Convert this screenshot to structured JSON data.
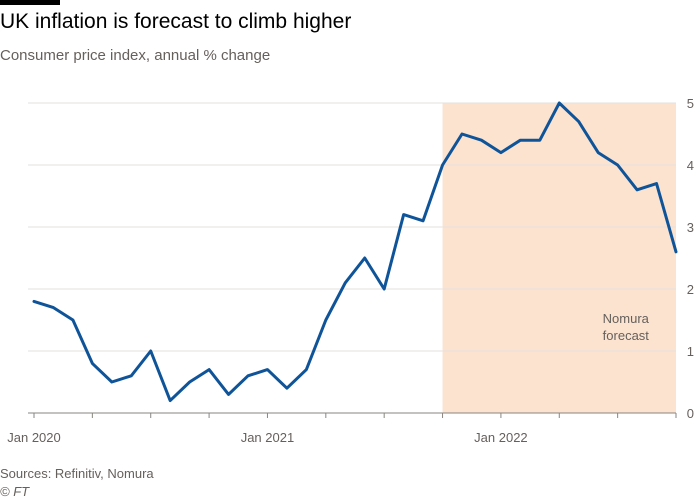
{
  "header": {
    "title": "UK inflation is forecast to climb higher",
    "subtitle": "Consumer price index, annual % change"
  },
  "footer": {
    "source": "Sources: Refinitiv, Nomura",
    "credit": "© FT"
  },
  "colors": {
    "line": "#0f5499",
    "forecast_shade": "#fbe3d0",
    "grid": "#e6e1dc",
    "axis": "#66605c"
  },
  "chart_data": {
    "type": "line",
    "title": "UK inflation is forecast to climb higher",
    "subtitle": "Consumer price index, annual % change",
    "xlabel": "",
    "ylabel": "",
    "ylim": [
      0,
      5
    ],
    "xlim_months": [
      0,
      33
    ],
    "yticks": [
      0,
      1,
      2,
      3,
      4,
      5
    ],
    "y_axis_position": "right",
    "grid": true,
    "x_ticks": [
      {
        "month": 0,
        "label": "Jan 2020"
      },
      {
        "month": 12,
        "label": "Jan 2021"
      },
      {
        "month": 24,
        "label": "Jan 2022"
      }
    ],
    "minor_tick_months": [
      0,
      3,
      6,
      9,
      12,
      15,
      18,
      21,
      24,
      27,
      30,
      33
    ],
    "series": [
      {
        "name": "CPI annual % change",
        "months": [
          0,
          1,
          2,
          3,
          4,
          5,
          6,
          7,
          8,
          9,
          10,
          11,
          12,
          13,
          14,
          15,
          16,
          17,
          18,
          19,
          20,
          21,
          22,
          23,
          24,
          25,
          26,
          27,
          28,
          29,
          30,
          31,
          32,
          33
        ],
        "values": [
          1.8,
          1.7,
          1.5,
          0.8,
          0.5,
          0.6,
          1.0,
          0.2,
          0.5,
          0.7,
          0.3,
          0.6,
          0.7,
          0.4,
          0.7,
          1.5,
          2.1,
          2.5,
          2.0,
          3.2,
          3.1,
          4.0,
          4.5,
          4.4,
          4.2,
          4.4,
          4.4,
          5.0,
          4.7,
          4.2,
          4.0,
          3.6,
          3.7,
          2.6
        ]
      }
    ],
    "shaded_region": {
      "from_month": 21,
      "to_month": 33,
      "label": [
        "Nomura",
        "forecast"
      ]
    }
  }
}
